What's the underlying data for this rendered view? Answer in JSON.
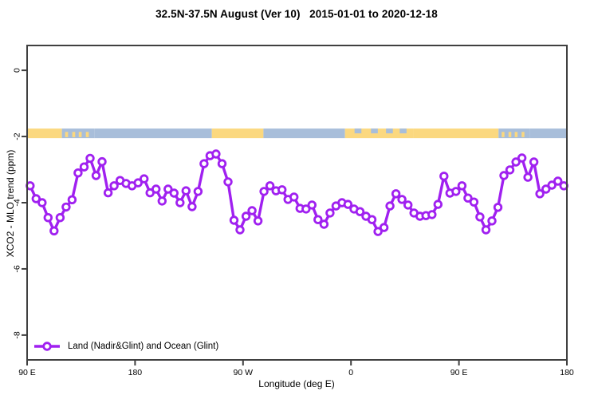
{
  "title": "32.5N-37.5N August (Ver 10)   2015-01-01 to 2020-12-18",
  "legend": {
    "label": "Land (Nadir&Glint) and Ocean (Glint)"
  },
  "chart_data": {
    "type": "line",
    "title": "32.5N-37.5N August (Ver 10)   2015-01-01 to 2020-12-18",
    "xlabel": "Longitude (deg E)",
    "ylabel": "XCO2 - MLO trend (ppm)",
    "x_axis": {
      "range_deg_along_axis": [
        90,
        540
      ],
      "ticks_deg": [
        90,
        180,
        270,
        360,
        450,
        540
      ],
      "tick_labels": [
        "90 E",
        "180",
        "90 W",
        "0",
        "90 E",
        "180"
      ]
    },
    "y_axis": {
      "range": [
        -8.75,
        0.75
      ],
      "ticks": [
        0,
        -2,
        -4,
        -6,
        -8
      ],
      "tick_labels": [
        "0",
        "-2",
        "-4",
        "-6",
        "-8"
      ]
    },
    "grid": false,
    "legend_position": "bottom-left-inside",
    "series": [
      {
        "name": "Land (Nadir&Glint) and Ocean (Glint)",
        "color": "#A020F0",
        "marker": "open-circle",
        "x_start_deg": 92.5,
        "x_step_deg": 5,
        "values": [
          -3.49,
          -3.88,
          -4.0,
          -4.45,
          -4.85,
          -4.45,
          -4.13,
          -3.91,
          -3.1,
          -2.92,
          -2.66,
          -3.18,
          -2.76,
          -3.7,
          -3.49,
          -3.33,
          -3.42,
          -3.49,
          -3.4,
          -3.28,
          -3.7,
          -3.59,
          -3.95,
          -3.59,
          -3.71,
          -4.0,
          -3.64,
          -4.12,
          -3.66,
          -2.82,
          -2.58,
          -2.53,
          -2.82,
          -3.37,
          -4.53,
          -4.82,
          -4.41,
          -4.24,
          -4.55,
          -3.66,
          -3.49,
          -3.64,
          -3.61,
          -3.9,
          -3.83,
          -4.17,
          -4.19,
          -4.07,
          -4.51,
          -4.65,
          -4.31,
          -4.1,
          -4.0,
          -4.05,
          -4.19,
          -4.27,
          -4.41,
          -4.51,
          -4.87,
          -4.75,
          -4.1,
          -3.73,
          -3.9,
          -4.07,
          -4.31,
          -4.41,
          -4.39,
          -4.36,
          -4.05,
          -3.2,
          -3.71,
          -3.66,
          -3.49,
          -3.86,
          -3.98,
          -4.43,
          -4.82,
          -4.55,
          -4.14,
          -3.18,
          -3.01,
          -2.77,
          -2.65,
          -3.23,
          -2.77,
          -3.73,
          -3.59,
          -3.47,
          -3.35,
          -3.49
        ]
      }
    ],
    "map_band": {
      "description": "land-ocean strip along latitude band",
      "y_value_range": [
        -1.76,
        -2.05
      ],
      "land_color": "#FBD87F",
      "ocean_color": "#A8BEDA",
      "segments_deg": [
        [
          90,
          119,
          "land"
        ],
        [
          119,
          146,
          "mixed-ocean"
        ],
        [
          146,
          244,
          "ocean"
        ],
        [
          244,
          287,
          "land"
        ],
        [
          287,
          355,
          "ocean"
        ],
        [
          355,
          412,
          "mixed-land"
        ],
        [
          412,
          483,
          "land"
        ],
        [
          483,
          509,
          "mixed-ocean"
        ],
        [
          509,
          540,
          "ocean"
        ]
      ]
    },
    "axis_color": "#404040"
  }
}
